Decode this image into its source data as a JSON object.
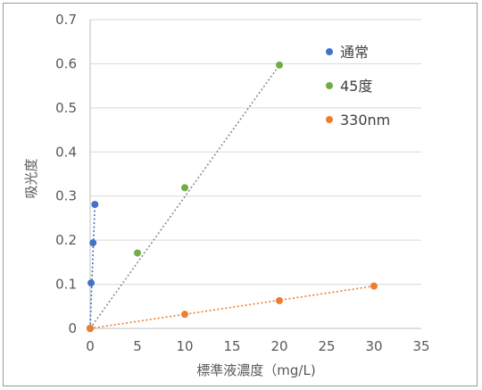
{
  "chart_data": {
    "type": "scatter",
    "title": "",
    "xlabel": "標準液濃度（mg/L)",
    "ylabel": "吸光度",
    "xlim": [
      0,
      35
    ],
    "ylim": [
      0,
      0.7
    ],
    "xticks": [
      "0",
      "5",
      "10",
      "15",
      "20",
      "25",
      "30",
      "35"
    ],
    "yticks": [
      "0",
      "0.1",
      "0.2",
      "0.3",
      "0.4",
      "0.5",
      "0.6",
      "0.7"
    ],
    "grid": "horizontal",
    "legend_position": "top-right",
    "series": [
      {
        "name": "通常",
        "color": "#4472c4",
        "trendline": "linear-dotted",
        "points": [
          [
            0,
            0
          ],
          [
            0.1,
            0.103
          ],
          [
            0.3,
            0.194
          ],
          [
            0.5,
            0.281
          ]
        ]
      },
      {
        "name": "45度",
        "color": "#70ad47",
        "trendline": "linear-dotted-gray",
        "points": [
          [
            0,
            0
          ],
          [
            5,
            0.171
          ],
          [
            10,
            0.319
          ],
          [
            20,
            0.597
          ]
        ]
      },
      {
        "name": "330nm",
        "color": "#ed7d31",
        "trendline": "linear-dotted",
        "points": [
          [
            0,
            0
          ],
          [
            10,
            0.032
          ],
          [
            20,
            0.063
          ],
          [
            30,
            0.096
          ]
        ]
      }
    ]
  }
}
